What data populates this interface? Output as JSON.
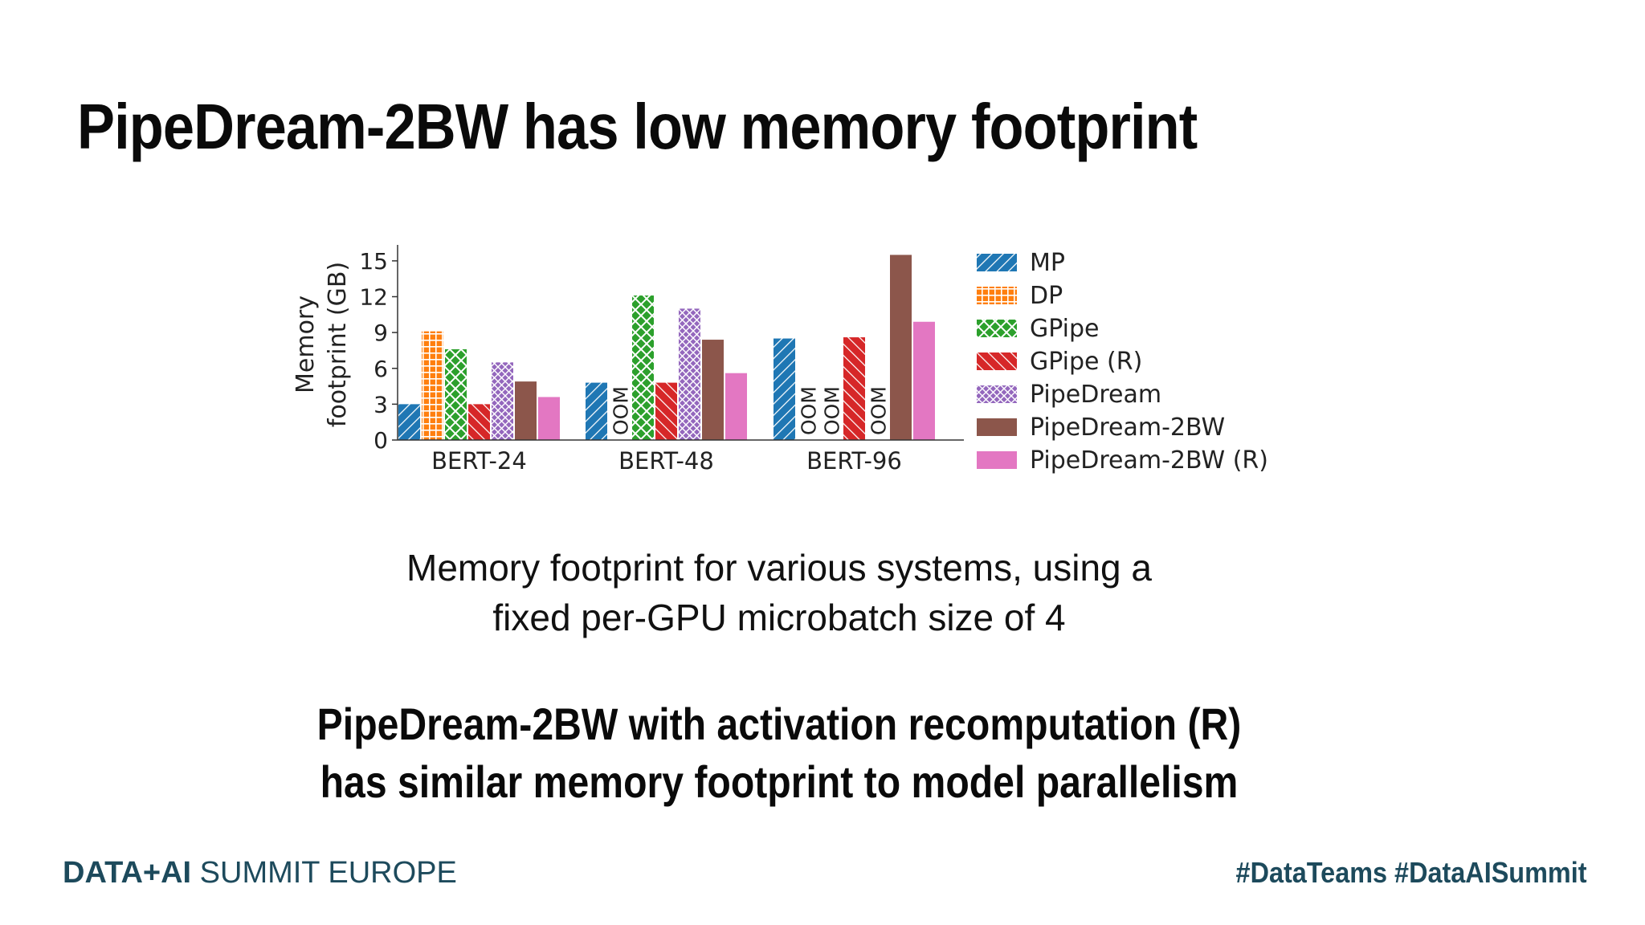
{
  "slide": {
    "title": "PipeDream-2BW has low memory footprint",
    "caption_lines": [
      "Memory footprint for various systems, using a",
      "fixed per-GPU microbatch size of 4"
    ],
    "takeaway_lines": [
      "PipeDream-2BW with activation recomputation (R)",
      "has similar memory footprint to model parallelism"
    ],
    "brand_bold": "DATA+AI",
    "brand_rest": " SUMMIT EUROPE",
    "hashtags": "#DataTeams  #DataAISummit"
  },
  "chart_data": {
    "type": "bar",
    "categories": [
      "BERT-24",
      "BERT-48",
      "BERT-96"
    ],
    "ylabel_lines": [
      "Memory",
      "footprint (GB)"
    ],
    "ylim": [
      0,
      16
    ],
    "yticks": [
      0,
      3,
      6,
      9,
      12,
      15
    ],
    "legend_position": "right",
    "oom_label": "OOM",
    "series": [
      {
        "name": "MP",
        "color": "#1f77b4",
        "pattern": "diagonal",
        "values": [
          3.0,
          4.8,
          8.5
        ]
      },
      {
        "name": "DP",
        "color": "#ff7f0e",
        "pattern": "grid",
        "values": [
          9.1,
          null,
          null
        ]
      },
      {
        "name": "GPipe",
        "color": "#2ca02c",
        "pattern": "crosshatch",
        "values": [
          7.6,
          12.1,
          null
        ]
      },
      {
        "name": "GPipe (R)",
        "color": "#d62728",
        "pattern": "backdiagonal",
        "values": [
          3.0,
          4.8,
          8.6
        ]
      },
      {
        "name": "PipeDream",
        "color": "#9467bd",
        "pattern": "diamond",
        "values": [
          6.5,
          11.0,
          null
        ]
      },
      {
        "name": "PipeDream-2BW",
        "color": "#8c564b",
        "pattern": "solid",
        "values": [
          4.9,
          8.4,
          15.5
        ]
      },
      {
        "name": "PipeDream-2BW (R)",
        "color": "#e377c2",
        "pattern": "solid",
        "values": [
          3.6,
          5.6,
          9.9
        ]
      }
    ]
  }
}
